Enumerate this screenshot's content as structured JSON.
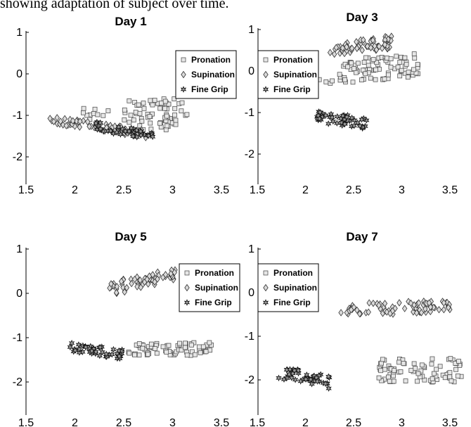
{
  "caption": "showing adaptation of subject over time.",
  "legend_labels": [
    "Pronation",
    "Supination",
    "Fine Grip"
  ],
  "chart_data": [
    {
      "type": "scatter",
      "title": "Day 1",
      "xlim": [
        1.5,
        3.75
      ],
      "ylim": [
        -2.5,
        1.1
      ],
      "xticks": [
        1.5,
        2,
        2.5,
        3,
        3.5
      ],
      "yticks": [
        -2,
        -1,
        0,
        1
      ],
      "legend_position": "top-right",
      "series": [
        {
          "name": "Pronation",
          "marker": "square",
          "clusters": [
            {
              "x": [
                2.5,
                3.15
              ],
              "y": [
                -1.35,
                -0.6
              ],
              "n": 70
            },
            {
              "x": [
                2.05,
                2.35
              ],
              "y": [
                -1.1,
                -0.8
              ],
              "n": 10
            }
          ]
        },
        {
          "name": "Supination",
          "marker": "diamond",
          "clusters": [
            {
              "x": [
                1.72,
                2.75
              ],
              "y": [
                -1.55,
                -1.0
              ],
              "n": 65,
              "slope": -0.35
            }
          ]
        },
        {
          "name": "Fine Grip",
          "marker": "hexagram",
          "clusters": [
            {
              "x": [
                2.2,
                2.8
              ],
              "y": [
                -1.6,
                -1.15
              ],
              "n": 40,
              "slope": -0.4
            }
          ]
        }
      ]
    },
    {
      "type": "scatter",
      "title": "Day 3",
      "xlim": [
        1.5,
        3.75
      ],
      "ylim": [
        -2.5,
        1.1
      ],
      "xticks": [
        1.5,
        2,
        2.5,
        3,
        3.5
      ],
      "yticks": [
        -2,
        -1,
        0,
        1
      ],
      "legend_position": "top-left",
      "series": [
        {
          "name": "Pronation",
          "marker": "square",
          "clusters": [
            {
              "x": [
                2.35,
                3.2
              ],
              "y": [
                -0.3,
                0.45
              ],
              "n": 85,
              "slope": 0.2
            },
            {
              "x": [
                2.1,
                2.3
              ],
              "y": [
                -0.3,
                -0.2
              ],
              "n": 4
            }
          ]
        },
        {
          "name": "Supination",
          "marker": "diamond",
          "clusters": [
            {
              "x": [
                2.25,
                2.9
              ],
              "y": [
                0.35,
                0.85
              ],
              "n": 65,
              "slope": 0.3
            }
          ]
        },
        {
          "name": "Fine Grip",
          "marker": "hexagram",
          "clusters": [
            {
              "x": [
                2.12,
                2.65
              ],
              "y": [
                -1.4,
                -0.95
              ],
              "n": 45,
              "slope": -0.3
            }
          ]
        }
      ]
    },
    {
      "type": "scatter",
      "title": "Day 5",
      "xlim": [
        1.5,
        3.75
      ],
      "ylim": [
        -2.5,
        1.1
      ],
      "xticks": [
        1.5,
        2,
        2.5,
        3,
        3.5
      ],
      "yticks": [
        -2,
        -1,
        0,
        1
      ],
      "legend_position": "top-right",
      "series": [
        {
          "name": "Pronation",
          "marker": "square",
          "clusters": [
            {
              "x": [
                2.6,
                3.4
              ],
              "y": [
                -1.4,
                -1.1
              ],
              "n": 70
            },
            {
              "x": [
                2.52,
                2.58
              ],
              "y": [
                -1.35,
                -1.25
              ],
              "n": 2
            }
          ]
        },
        {
          "name": "Supination",
          "marker": "diamond",
          "clusters": [
            {
              "x": [
                2.35,
                3.05
              ],
              "y": [
                -0.05,
                0.6
              ],
              "n": 65,
              "slope": 0.5
            }
          ]
        },
        {
          "name": "Fine Grip",
          "marker": "hexagram",
          "clusters": [
            {
              "x": [
                1.95,
                2.5
              ],
              "y": [
                -1.5,
                -1.1
              ],
              "n": 45,
              "slope": -0.3
            }
          ]
        }
      ]
    },
    {
      "type": "scatter",
      "title": "Day 7",
      "xlim": [
        1.5,
        3.75
      ],
      "ylim": [
        -2.5,
        1.1
      ],
      "xticks": [
        1.5,
        2,
        2.5,
        3,
        3.5
      ],
      "yticks": [
        -2,
        -1,
        0,
        1
      ],
      "legend_position": "top-left",
      "series": [
        {
          "name": "Pronation",
          "marker": "square",
          "clusters": [
            {
              "x": [
                2.75,
                3.65
              ],
              "y": [
                -2.05,
                -1.5
              ],
              "n": 80
            }
          ]
        },
        {
          "name": "Supination",
          "marker": "diamond",
          "clusters": [
            {
              "x": [
                2.35,
                3.5
              ],
              "y": [
                -0.55,
                -0.15
              ],
              "n": 75,
              "slope": 0.1
            }
          ]
        },
        {
          "name": "Fine Grip",
          "marker": "hexagram",
          "clusters": [
            {
              "x": [
                1.72,
                2.25
              ],
              "y": [
                -2.2,
                -1.65
              ],
              "n": 45,
              "slope": -0.45
            }
          ]
        }
      ]
    }
  ]
}
